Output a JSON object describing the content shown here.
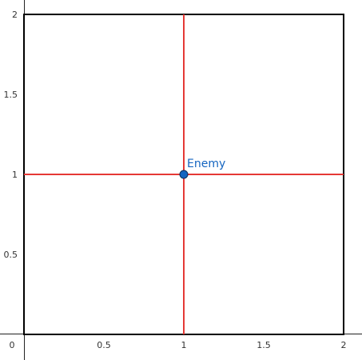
{
  "chart_data": {
    "type": "scatter",
    "title": "",
    "xlabel": "",
    "ylabel": "",
    "xlim": [
      0,
      2
    ],
    "ylim": [
      0,
      2
    ],
    "x_ticks": [
      "0.5",
      "1",
      "1.5",
      "2"
    ],
    "y_ticks": [
      "0.5",
      "1",
      "1.5",
      "2"
    ],
    "origin_label": "0",
    "grid": false,
    "square": {
      "x": [
        0,
        2
      ],
      "y": [
        0,
        2
      ],
      "color": "#000000"
    },
    "lines": [
      {
        "orientation": "vertical",
        "x": 1,
        "color": "#e53935"
      },
      {
        "orientation": "horizontal",
        "y": 1,
        "color": "#e53935"
      }
    ],
    "points": [
      {
        "label": "Enemy",
        "x": 1,
        "y": 1,
        "color": "#1565c0"
      }
    ]
  }
}
